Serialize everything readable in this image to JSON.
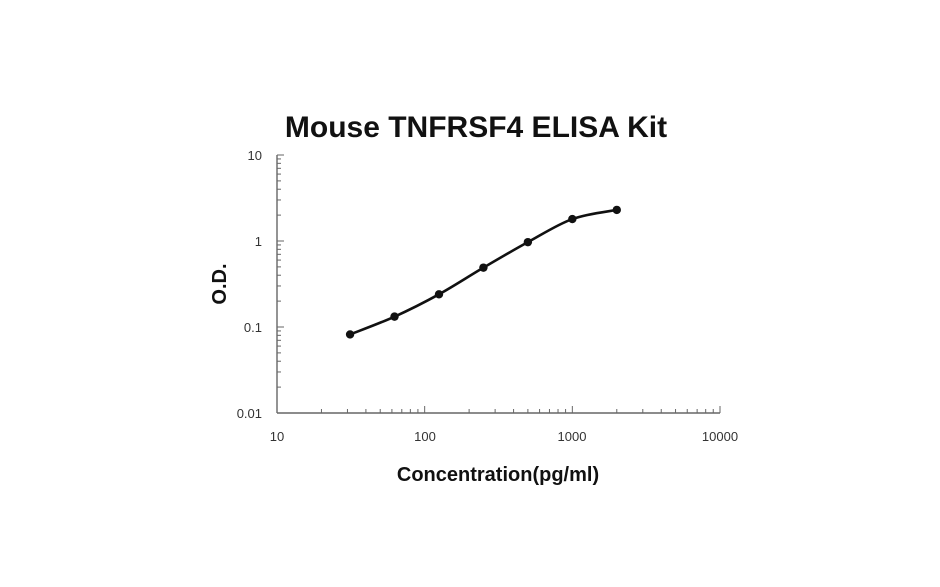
{
  "chart_data": {
    "type": "line",
    "title": "Mouse TNFRSF4 ELISA Kit",
    "xlabel": "Concentration(pg/ml)",
    "ylabel": "O.D.",
    "xscale": "log",
    "yscale": "log",
    "xlim": [
      10,
      10000
    ],
    "ylim": [
      0.01,
      10
    ],
    "x_ticks": [
      "10",
      "100",
      "1000",
      "10000"
    ],
    "y_ticks": [
      "10",
      "1",
      "0.1",
      "0.01"
    ],
    "grid": false,
    "legend": "none",
    "series": [
      {
        "x": [
          31.25,
          62.5,
          125,
          250,
          500,
          1000,
          2000
        ],
        "y": [
          0.082,
          0.132,
          0.24,
          0.49,
          0.97,
          1.8,
          2.3
        ]
      }
    ]
  }
}
